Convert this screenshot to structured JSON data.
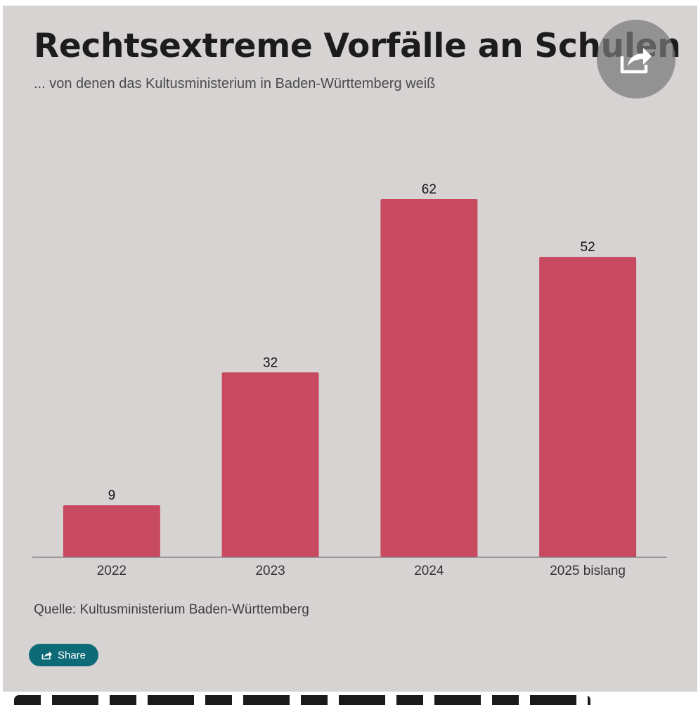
{
  "header": {
    "title": "Rechtsextreme Vorfälle an Schulen",
    "subtitle": "... von denen das Kultusministerium in Baden-Württemberg weiß"
  },
  "footer": {
    "source": "Quelle: Kultusministerium Baden-Württemberg",
    "share_label": "Share"
  },
  "icons": {
    "fab": "share-arrow-icon",
    "button": "share-icon"
  },
  "colors": {
    "bar": "#c84a60",
    "background": "#d7d3d3",
    "share_button": "#0d6b78"
  },
  "chart_data": {
    "type": "bar",
    "categories": [
      "2022",
      "2023",
      "2024",
      "2025 bislang"
    ],
    "values": [
      9,
      32,
      62,
      52
    ],
    "title": "Rechtsextreme Vorfälle an Schulen",
    "subtitle": "... von denen das Kultusministerium in Baden-Württemberg weiß",
    "xlabel": "",
    "ylabel": "",
    "ylim": [
      0,
      62
    ],
    "grid": false,
    "legend": "none",
    "data_labels": true
  }
}
